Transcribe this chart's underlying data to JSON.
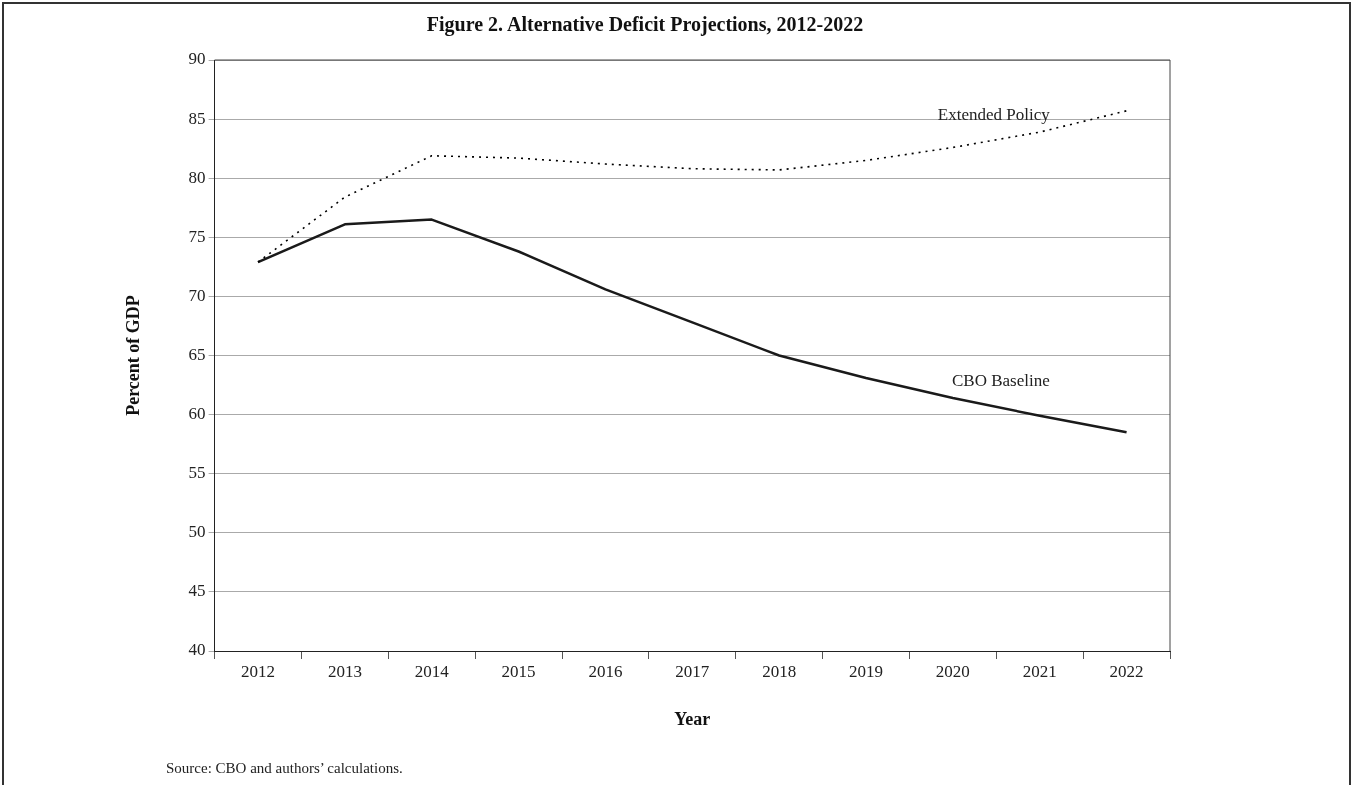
{
  "chart_data": {
    "type": "line",
    "title": "Figure 2. Alternative Deficit Projections, 2012-2022",
    "xlabel": "Year",
    "ylabel": "Percent of GDP",
    "categories": [
      "2012",
      "2013",
      "2014",
      "2015",
      "2016",
      "2017",
      "2018",
      "2019",
      "2020",
      "2021",
      "2022"
    ],
    "series": [
      {
        "name": "Extended Policy",
        "color": "#000000",
        "line_style": "dotted",
        "values": [
          72.9,
          78.4,
          81.9,
          81.7,
          81.2,
          80.8,
          80.7,
          81.5,
          82.6,
          83.9,
          85.7
        ]
      },
      {
        "name": "CBO Baseline",
        "color": "#1a1a1a",
        "line_style": "solid",
        "values": [
          72.9,
          76.1,
          76.5,
          73.8,
          70.6,
          67.8,
          65.0,
          63.1,
          61.4,
          59.9,
          58.5
        ]
      }
    ],
    "ylim": [
      40,
      90
    ],
    "yticks": [
      40,
      45,
      50,
      55,
      60,
      65,
      70,
      75,
      80,
      85,
      90
    ],
    "grid": "y",
    "legend": false,
    "marker": "none",
    "annotations": [
      "Source: CBO and authors’ calculations."
    ]
  }
}
